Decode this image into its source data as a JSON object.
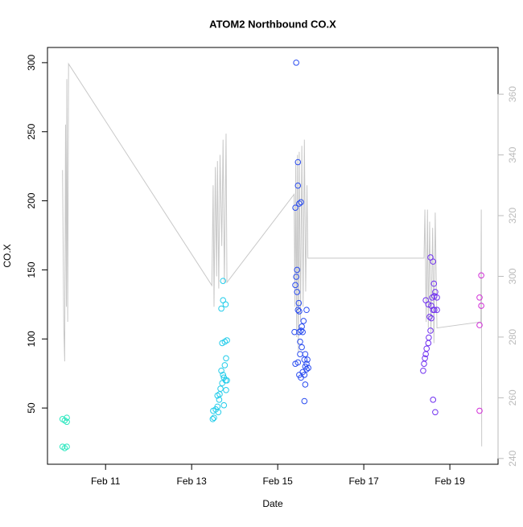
{
  "chart_data": {
    "type": "scatter",
    "title": "ATOM2 Northbound CO.X",
    "xlabel": "Date",
    "ylabel": "CO.X",
    "xlim": [
      9.65,
      20.12
    ],
    "xticks": [
      {
        "value": 11,
        "label": "Feb 11"
      },
      {
        "value": 13,
        "label": "Feb 13"
      },
      {
        "value": 15,
        "label": "Feb 15"
      },
      {
        "value": 17,
        "label": "Feb 17"
      },
      {
        "value": 19,
        "label": "Feb 19"
      }
    ],
    "ylim": [
      9.3,
      311
    ],
    "yticks": [
      50,
      100,
      150,
      200,
      250,
      300
    ],
    "y2lim": [
      238.1,
      375.4
    ],
    "y2ticks": [
      240,
      260,
      280,
      300,
      320,
      340,
      360
    ],
    "y2color": "#bbbbbb",
    "series": [
      {
        "type": "line",
        "axis": "y2",
        "color": "#c8c8c8",
        "x": [
          10.0,
          10.03,
          10.05,
          10.07,
          10.09,
          10.1,
          10.12,
          10.14,
          13.47,
          13.5,
          13.52,
          13.55,
          13.58,
          13.6,
          13.63,
          13.66,
          13.7,
          13.73,
          13.76,
          13.8,
          13.82,
          15.38,
          15.4,
          15.42,
          15.44,
          15.46,
          15.48,
          15.5,
          15.53,
          15.56,
          15.59,
          15.62,
          15.65,
          15.68,
          15.7,
          18.4,
          18.42,
          18.45,
          18.48,
          18.5,
          18.53,
          18.56,
          18.6,
          18.63,
          18.66,
          18.7,
          19.72,
          19.73,
          19.74
        ],
        "values": [
          335,
          283,
          272,
          350,
          290,
          365,
          285,
          370,
          297,
          330,
          290,
          336,
          300,
          338,
          296,
          340,
          310,
          345,
          298,
          347,
          298,
          327,
          290,
          338,
          280,
          340,
          275,
          341,
          285,
          343,
          290,
          345,
          295,
          330,
          306,
          306,
          322,
          285,
          322,
          283,
          318,
          281,
          316,
          278,
          321,
          283,
          285,
          322,
          244
        ]
      },
      {
        "color": "#2ee8c0",
        "x": [
          10.0,
          10.0,
          10.05,
          10.05,
          10.1,
          10.1,
          10.1
        ],
        "values": [
          42,
          22,
          41,
          21,
          40,
          22,
          43
        ]
      },
      {
        "color": "#22ccea",
        "x": [
          13.49,
          13.52,
          13.5,
          13.56,
          13.6,
          13.64,
          13.65,
          13.67,
          13.71,
          13.69,
          13.73,
          13.75,
          13.79,
          13.82,
          13.77,
          13.8,
          13.71,
          13.77,
          13.82,
          13.69,
          13.73,
          13.79,
          13.73,
          13.62,
          13.75,
          13.8,
          13.6
        ],
        "values": [
          42,
          43,
          48,
          49,
          51,
          56,
          60,
          64,
          68,
          77,
          74,
          72,
          70,
          70,
          81,
          86,
          97,
          98,
          99,
          122,
          128,
          125,
          142,
          47,
          52,
          63,
          59
        ]
      },
      {
        "color": "#2a4cf0",
        "x": [
          15.43,
          15.47,
          15.47,
          15.41,
          15.5,
          15.54,
          15.45,
          15.43,
          15.41,
          15.45,
          15.49,
          15.47,
          15.5,
          15.67,
          15.6,
          15.56,
          15.54,
          15.5,
          15.39,
          15.58,
          15.52,
          15.56,
          15.52,
          15.64,
          15.62,
          15.69,
          15.47,
          15.41,
          15.64,
          15.67,
          15.58,
          15.5,
          15.62,
          15.54,
          15.64,
          15.62,
          15.67,
          15.71
        ],
        "values": [
          300,
          228,
          211,
          195,
          198,
          199,
          150,
          145,
          139,
          134,
          126,
          121,
          120,
          121,
          113,
          109,
          106,
          105,
          105,
          105,
          98,
          94,
          89,
          89,
          85,
          85,
          83,
          82,
          80,
          78,
          76,
          74,
          74,
          72,
          67,
          55,
          82,
          79
        ]
      },
      {
        "color": "#7030f0",
        "x": [
          18.55,
          18.61,
          18.63,
          18.66,
          18.64,
          18.59,
          18.44,
          18.7,
          18.5,
          18.57,
          18.61,
          18.64,
          18.53,
          18.57,
          18.55,
          18.51,
          18.5,
          18.46,
          18.44,
          18.42,
          18.4,
          18.38,
          18.61,
          18.66,
          18.7
        ],
        "values": [
          159,
          156,
          140,
          134,
          131,
          130,
          128,
          130,
          125,
          124,
          121,
          121,
          116,
          115,
          106,
          101,
          97,
          93,
          89,
          86,
          82,
          77,
          56,
          47,
          121
        ]
      },
      {
        "color": "#d22ed8",
        "x": [
          19.73,
          19.69,
          19.73,
          19.69,
          19.69
        ],
        "values": [
          146,
          130,
          124,
          110,
          48
        ]
      }
    ]
  }
}
